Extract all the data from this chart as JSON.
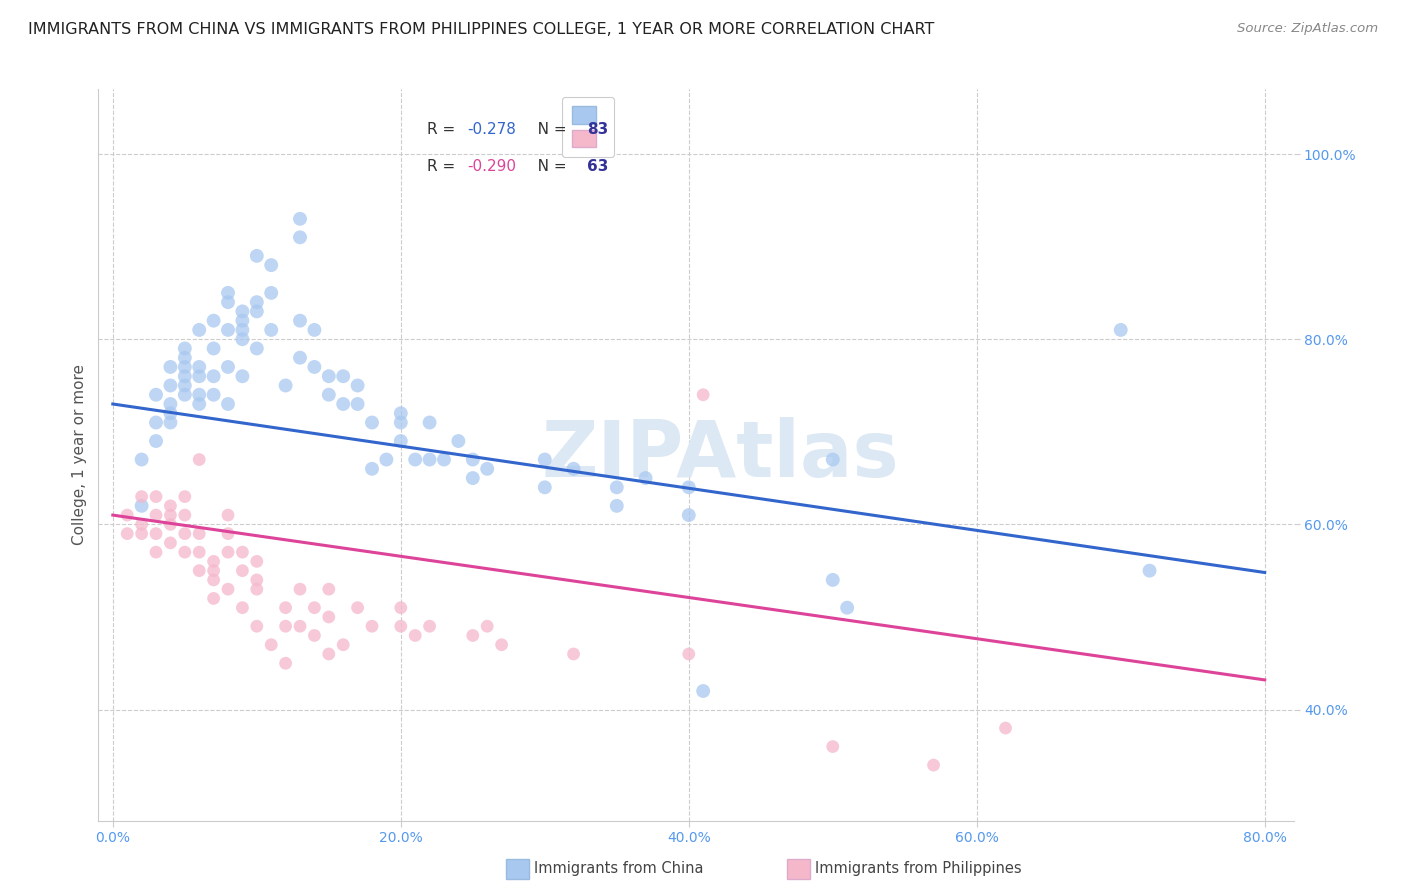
{
  "title": "IMMIGRANTS FROM CHINA VS IMMIGRANTS FROM PHILIPPINES COLLEGE, 1 YEAR OR MORE CORRELATION CHART",
  "source": "Source: ZipAtlas.com",
  "ylabel_label": "College, 1 year or more",
  "x_ticks": [
    0.0,
    0.2,
    0.4,
    0.6,
    0.8
  ],
  "y_ticks": [
    0.4,
    0.6,
    0.8,
    1.0
  ],
  "xlim": [
    -0.01,
    0.82
  ],
  "ylim": [
    0.28,
    1.07
  ],
  "china_R": -0.278,
  "china_N": 83,
  "phil_R": -0.29,
  "phil_N": 63,
  "blue_line_x": [
    0.0,
    0.8
  ],
  "blue_line_y": [
    0.73,
    0.548
  ],
  "pink_line_x": [
    0.0,
    0.8
  ],
  "pink_line_y": [
    0.61,
    0.432
  ],
  "china_scatter": [
    [
      0.02,
      0.62
    ],
    [
      0.02,
      0.67
    ],
    [
      0.03,
      0.71
    ],
    [
      0.03,
      0.69
    ],
    [
      0.03,
      0.74
    ],
    [
      0.04,
      0.73
    ],
    [
      0.04,
      0.75
    ],
    [
      0.04,
      0.72
    ],
    [
      0.04,
      0.77
    ],
    [
      0.04,
      0.71
    ],
    [
      0.05,
      0.74
    ],
    [
      0.05,
      0.75
    ],
    [
      0.05,
      0.77
    ],
    [
      0.05,
      0.79
    ],
    [
      0.05,
      0.76
    ],
    [
      0.05,
      0.78
    ],
    [
      0.06,
      0.81
    ],
    [
      0.06,
      0.76
    ],
    [
      0.06,
      0.73
    ],
    [
      0.06,
      0.74
    ],
    [
      0.06,
      0.77
    ],
    [
      0.07,
      0.79
    ],
    [
      0.07,
      0.76
    ],
    [
      0.07,
      0.82
    ],
    [
      0.07,
      0.74
    ],
    [
      0.08,
      0.84
    ],
    [
      0.08,
      0.81
    ],
    [
      0.08,
      0.77
    ],
    [
      0.08,
      0.73
    ],
    [
      0.08,
      0.85
    ],
    [
      0.09,
      0.82
    ],
    [
      0.09,
      0.83
    ],
    [
      0.09,
      0.81
    ],
    [
      0.09,
      0.8
    ],
    [
      0.09,
      0.76
    ],
    [
      0.1,
      0.79
    ],
    [
      0.1,
      0.84
    ],
    [
      0.1,
      0.89
    ],
    [
      0.1,
      0.83
    ],
    [
      0.11,
      0.88
    ],
    [
      0.11,
      0.85
    ],
    [
      0.11,
      0.81
    ],
    [
      0.12,
      0.75
    ],
    [
      0.13,
      0.82
    ],
    [
      0.13,
      0.78
    ],
    [
      0.13,
      0.93
    ],
    [
      0.13,
      0.91
    ],
    [
      0.14,
      0.81
    ],
    [
      0.14,
      0.77
    ],
    [
      0.15,
      0.74
    ],
    [
      0.15,
      0.76
    ],
    [
      0.16,
      0.73
    ],
    [
      0.16,
      0.76
    ],
    [
      0.17,
      0.75
    ],
    [
      0.17,
      0.73
    ],
    [
      0.18,
      0.66
    ],
    [
      0.18,
      0.71
    ],
    [
      0.19,
      0.67
    ],
    [
      0.2,
      0.72
    ],
    [
      0.2,
      0.71
    ],
    [
      0.2,
      0.69
    ],
    [
      0.21,
      0.67
    ],
    [
      0.22,
      0.67
    ],
    [
      0.22,
      0.71
    ],
    [
      0.23,
      0.67
    ],
    [
      0.24,
      0.69
    ],
    [
      0.25,
      0.67
    ],
    [
      0.25,
      0.65
    ],
    [
      0.26,
      0.66
    ],
    [
      0.3,
      0.67
    ],
    [
      0.3,
      0.64
    ],
    [
      0.32,
      0.66
    ],
    [
      0.35,
      0.64
    ],
    [
      0.35,
      0.62
    ],
    [
      0.37,
      0.65
    ],
    [
      0.4,
      0.61
    ],
    [
      0.4,
      0.64
    ],
    [
      0.41,
      0.42
    ],
    [
      0.5,
      0.67
    ],
    [
      0.5,
      0.54
    ],
    [
      0.51,
      0.51
    ],
    [
      0.7,
      0.81
    ],
    [
      0.72,
      0.55
    ]
  ],
  "phil_scatter": [
    [
      0.01,
      0.61
    ],
    [
      0.01,
      0.59
    ],
    [
      0.02,
      0.6
    ],
    [
      0.02,
      0.59
    ],
    [
      0.02,
      0.63
    ],
    [
      0.03,
      0.61
    ],
    [
      0.03,
      0.63
    ],
    [
      0.03,
      0.59
    ],
    [
      0.03,
      0.57
    ],
    [
      0.04,
      0.62
    ],
    [
      0.04,
      0.6
    ],
    [
      0.04,
      0.58
    ],
    [
      0.04,
      0.61
    ],
    [
      0.05,
      0.59
    ],
    [
      0.05,
      0.57
    ],
    [
      0.05,
      0.61
    ],
    [
      0.05,
      0.63
    ],
    [
      0.06,
      0.57
    ],
    [
      0.06,
      0.55
    ],
    [
      0.06,
      0.59
    ],
    [
      0.06,
      0.67
    ],
    [
      0.07,
      0.54
    ],
    [
      0.07,
      0.52
    ],
    [
      0.07,
      0.56
    ],
    [
      0.07,
      0.55
    ],
    [
      0.08,
      0.53
    ],
    [
      0.08,
      0.57
    ],
    [
      0.08,
      0.59
    ],
    [
      0.08,
      0.61
    ],
    [
      0.09,
      0.51
    ],
    [
      0.09,
      0.55
    ],
    [
      0.09,
      0.57
    ],
    [
      0.1,
      0.54
    ],
    [
      0.1,
      0.49
    ],
    [
      0.1,
      0.53
    ],
    [
      0.1,
      0.56
    ],
    [
      0.11,
      0.47
    ],
    [
      0.12,
      0.45
    ],
    [
      0.12,
      0.49
    ],
    [
      0.12,
      0.51
    ],
    [
      0.13,
      0.53
    ],
    [
      0.13,
      0.49
    ],
    [
      0.14,
      0.48
    ],
    [
      0.14,
      0.51
    ],
    [
      0.15,
      0.5
    ],
    [
      0.15,
      0.46
    ],
    [
      0.15,
      0.53
    ],
    [
      0.16,
      0.47
    ],
    [
      0.17,
      0.51
    ],
    [
      0.18,
      0.49
    ],
    [
      0.2,
      0.49
    ],
    [
      0.2,
      0.51
    ],
    [
      0.21,
      0.48
    ],
    [
      0.22,
      0.49
    ],
    [
      0.25,
      0.48
    ],
    [
      0.26,
      0.49
    ],
    [
      0.27,
      0.47
    ],
    [
      0.32,
      0.46
    ],
    [
      0.4,
      0.46
    ],
    [
      0.41,
      0.74
    ],
    [
      0.5,
      0.36
    ],
    [
      0.57,
      0.34
    ],
    [
      0.62,
      0.38
    ]
  ],
  "dot_size_blue": 100,
  "dot_size_pink": 85,
  "blue_color": "#a8c8f0",
  "pink_color": "#f5b8cb",
  "blue_line_color": "#3366cc",
  "pink_line_color": "#dd4499",
  "grid_color": "#cccccc",
  "background_color": "#ffffff",
  "watermark_text": "ZIPAtlas",
  "watermark_color": "#dce8f4",
  "watermark_fontsize": 56,
  "title_fontsize": 11.5,
  "source_fontsize": 9.5,
  "tick_fontsize": 10,
  "ylabel_fontsize": 11,
  "legend_fontsize": 11,
  "axis_label_color": "#5599ee",
  "ylabel_color": "#555555"
}
